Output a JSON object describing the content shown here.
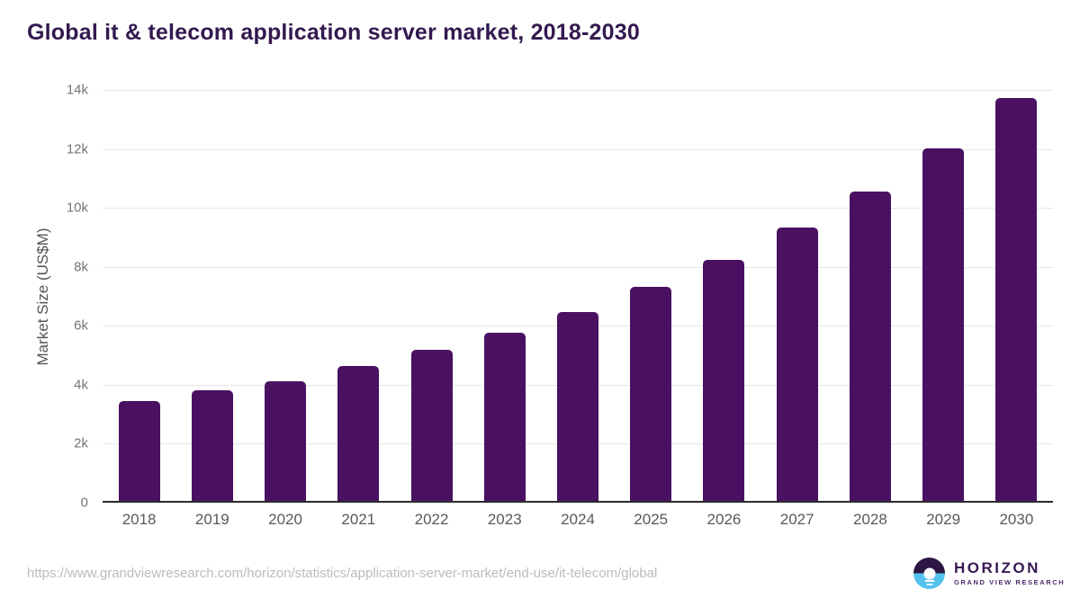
{
  "header": {
    "title": "Global it & telecom application server market, 2018-2030"
  },
  "chart_data": {
    "type": "bar",
    "title": "Global it & telecom application server market, 2018-2030",
    "categories": [
      "2018",
      "2019",
      "2020",
      "2021",
      "2022",
      "2023",
      "2024",
      "2025",
      "2026",
      "2027",
      "2028",
      "2029",
      "2030"
    ],
    "values": [
      3400,
      3760,
      4050,
      4580,
      5110,
      5690,
      6400,
      7260,
      8180,
      9260,
      10480,
      11960,
      13660
    ],
    "xlabel": "",
    "ylabel": "Market Size (US$M)",
    "ylim": [
      0,
      14000
    ],
    "yticks": [
      {
        "value": 0,
        "label": "0"
      },
      {
        "value": 2000,
        "label": "2k"
      },
      {
        "value": 4000,
        "label": "4k"
      },
      {
        "value": 6000,
        "label": "6k"
      },
      {
        "value": 8000,
        "label": "8k"
      },
      {
        "value": 10000,
        "label": "10k"
      },
      {
        "value": 12000,
        "label": "12k"
      },
      {
        "value": 14000,
        "label": "14k"
      }
    ],
    "grid": true,
    "legend": false,
    "bar_color": "#4a1162",
    "gridline_color": "#e7e7e7",
    "axis_line_color": "#2b2b2b"
  },
  "footer": {
    "source_url": "https://www.grandviewresearch.com/horizon/statistics/application-server-market/end-use/it-telecom/global",
    "logo": {
      "icon": "horizon-sun-circle-icon",
      "brand": "HORIZON",
      "tagline": "GRAND VIEW RESEARCH",
      "purple": "#2c1643",
      "blue": "#55c2ee"
    }
  }
}
